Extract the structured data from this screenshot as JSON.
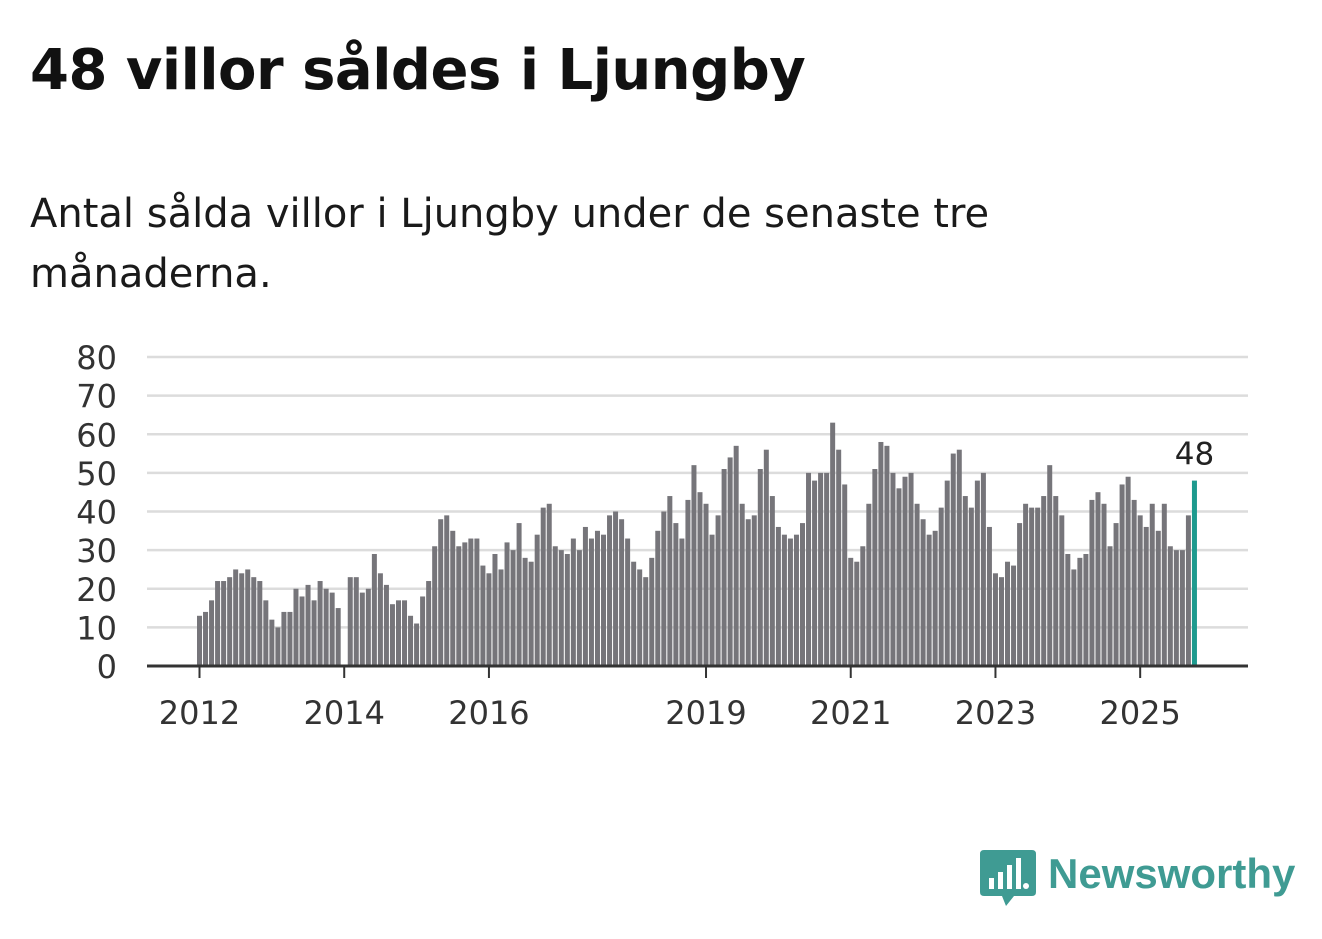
{
  "chart_data": {
    "type": "bar",
    "title": "48 villor såldes i Ljungby",
    "subtitle": "Antal sålda villor i Ljungby under de senaste tre månaderna.",
    "xlabel": "",
    "ylabel": "",
    "ylim": [
      0,
      80
    ],
    "yticks": [
      "0",
      "10",
      "20",
      "30",
      "40",
      "50",
      "60",
      "70",
      "80"
    ],
    "grid": true,
    "start": {
      "year": 2012,
      "month": 1
    },
    "xtick_labels": [
      {
        "label": "2012",
        "index": 0
      },
      {
        "label": "2014",
        "index": 24
      },
      {
        "label": "2016",
        "index": 48
      },
      {
        "label": "2019",
        "index": 84
      },
      {
        "label": "2021",
        "index": 108
      },
      {
        "label": "2023",
        "index": 132
      },
      {
        "label": "2025",
        "index": 156
      }
    ],
    "highlight_label": "48",
    "values": [
      13,
      14,
      17,
      22,
      22,
      23,
      25,
      24,
      25,
      23,
      22,
      17,
      12,
      10,
      14,
      14,
      20,
      18,
      21,
      17,
      22,
      20,
      19,
      15,
      0,
      23,
      23,
      19,
      20,
      29,
      24,
      21,
      16,
      17,
      17,
      13,
      11,
      18,
      22,
      31,
      38,
      39,
      35,
      31,
      32,
      33,
      33,
      26,
      24,
      29,
      25,
      32,
      30,
      37,
      28,
      27,
      34,
      41,
      42,
      31,
      30,
      29,
      33,
      30,
      36,
      33,
      35,
      34,
      39,
      40,
      38,
      33,
      27,
      25,
      23,
      28,
      35,
      40,
      44,
      37,
      33,
      43,
      52,
      45,
      42,
      34,
      39,
      51,
      54,
      57,
      42,
      38,
      39,
      51,
      56,
      44,
      36,
      34,
      33,
      34,
      37,
      50,
      48,
      50,
      50,
      63,
      56,
      47,
      28,
      27,
      31,
      42,
      51,
      58,
      57,
      50,
      46,
      49,
      50,
      42,
      38,
      34,
      35,
      41,
      48,
      55,
      56,
      44,
      41,
      48,
      50,
      36,
      24,
      23,
      27,
      26,
      37,
      42,
      41,
      41,
      44,
      52,
      44,
      39,
      29,
      25,
      28,
      29,
      43,
      45,
      42,
      31,
      37,
      47,
      49,
      43,
      39,
      36,
      42,
      35,
      42,
      31,
      30,
      30,
      39,
      48
    ],
    "colors": {
      "bar": "#76757a",
      "highlight": "#1d9a8e",
      "grid": "#dcdcdc",
      "axis": "#333333"
    }
  },
  "brand": {
    "name": "Newsworthy",
    "color": "#3f9b93"
  }
}
